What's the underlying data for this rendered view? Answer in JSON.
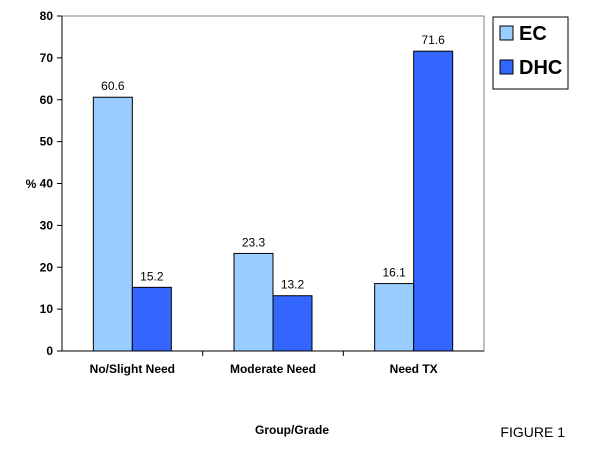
{
  "chart_data": {
    "type": "bar",
    "categories": [
      "No/Slight Need",
      "Moderate Need",
      "Need TX"
    ],
    "series": [
      {
        "name": "EC",
        "values": [
          60.6,
          23.3,
          16.1
        ],
        "color": "#99CCFF"
      },
      {
        "name": "DHC",
        "values": [
          15.2,
          13.2,
          71.6
        ],
        "color": "#3366FF"
      }
    ],
    "data_labels": true,
    "xlabel": "Group/Grade",
    "ylabel": "%",
    "ylim": [
      0,
      80
    ],
    "yticks": [
      0,
      10,
      20,
      30,
      40,
      50,
      60,
      70,
      80
    ],
    "grid": false,
    "legend": "right"
  },
  "figure_label": "FIGURE 1"
}
